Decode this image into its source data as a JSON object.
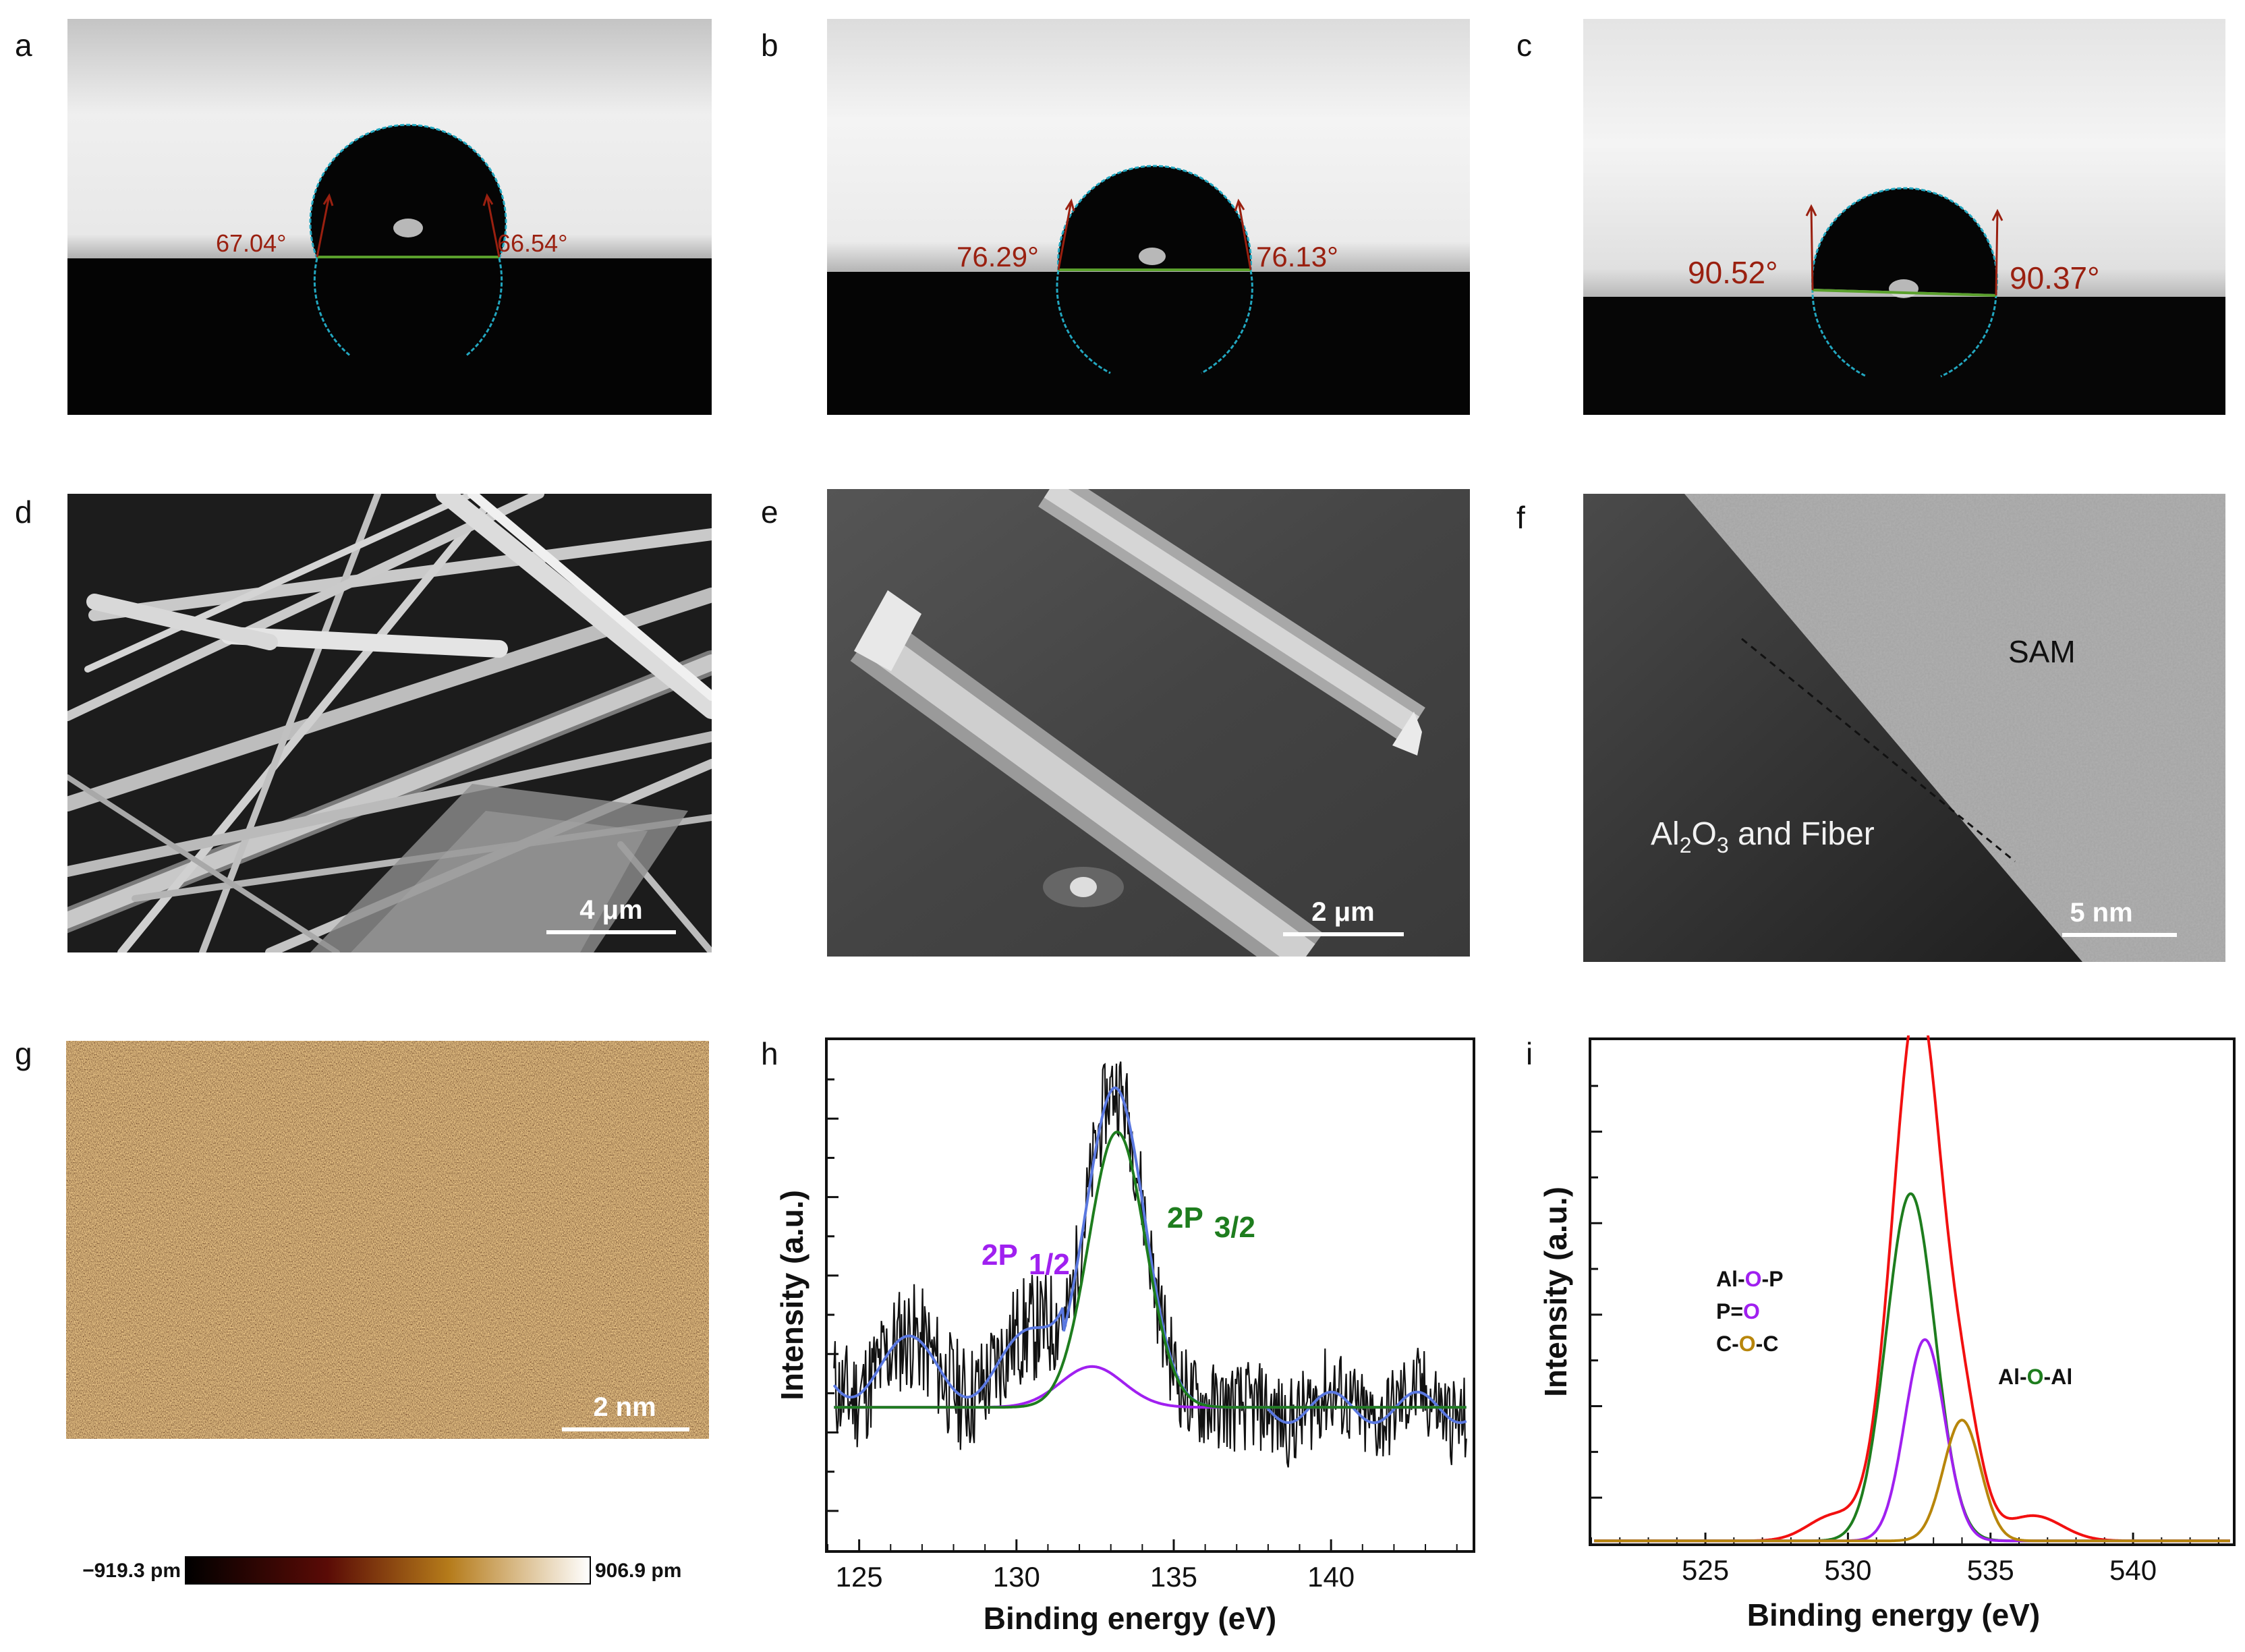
{
  "panels": {
    "a": {
      "label": "a",
      "left_angle": "67.04°",
      "right_angle": "66.54°"
    },
    "b": {
      "label": "b",
      "left_angle": "76.29°",
      "right_angle": "76.13°"
    },
    "c": {
      "label": "c",
      "left_angle": "90.52°",
      "right_angle": "90.37°"
    },
    "d": {
      "label": "d",
      "scale": "4 μm"
    },
    "e": {
      "label": "e",
      "scale": "2 μm"
    },
    "f": {
      "label": "f",
      "scale": "5 nm",
      "region_top": "SAM",
      "region_bottom_pre": "Al",
      "sub1": "2",
      "region_bottom_mid": "O",
      "sub2": "3",
      "region_bottom_post": " and Fiber"
    },
    "g": {
      "label": "g",
      "scale": "2 nm",
      "cbar_min": "−919.3 pm",
      "cbar_max": "906.9 pm"
    },
    "h": {
      "label": "h",
      "peak1": "2P",
      "peak1_sub": "1/2",
      "peak2": "2P",
      "peak2_sub": "3/2"
    },
    "i": {
      "label": "i",
      "ann1_a": "Al-",
      "ann1_o": "O",
      "ann1_b": "-P",
      "ann2_a": "P=",
      "ann2_o": "O",
      "ann3_a": "C-",
      "ann3_o": "O",
      "ann3_b": "-C",
      "ann4_a": "Al-",
      "ann4_o": "O",
      "ann4_b": "-Al"
    }
  },
  "colors": {
    "angle": "#9a2010",
    "baseline": "#5aa02c",
    "drop": "#22a7c0",
    "purple": "#a020f0",
    "green": "#1e7d1e",
    "blue": "#5a78e0",
    "red": "#f21010",
    "gold": "#b8860b"
  },
  "chart_data": [
    {
      "panel": "h",
      "type": "line",
      "xlabel": "Binding energy (eV)",
      "ylabel": "Intensity (a.u.)",
      "xlim": [
        124,
        144.5
      ],
      "xticks": [
        125,
        130,
        135,
        140
      ],
      "yticks_labels": false,
      "series": [
        {
          "name": "2P 1/2",
          "color": "#a020f0",
          "center": 132.4,
          "height": 0.36,
          "sigma": 1.0,
          "baseline": 0.28
        },
        {
          "name": "2P 3/2",
          "color": "#1e7d1e",
          "center": 133.2,
          "height": 0.82,
          "sigma": 0.9,
          "baseline": 0.28
        }
      ]
    },
    {
      "panel": "i",
      "type": "line",
      "xlabel": "Binding energy (eV)",
      "ylabel": "Intensity (a.u.)",
      "xlim": [
        521,
        543.5
      ],
      "xticks": [
        525,
        530,
        535,
        540
      ],
      "yticks_labels": false,
      "series": [
        {
          "name": "Al-O-Al",
          "color": "#1e7d1e",
          "center": 532.2,
          "height": 0.69,
          "sigma": 0.85
        },
        {
          "name": "Al-O-P",
          "color": "#a020f0",
          "center": 532.7,
          "height": 0.4,
          "sigma": 0.7
        },
        {
          "name": "C-O-C",
          "color": "#b8860b",
          "center": 534.0,
          "height": 0.24,
          "sigma": 0.65
        },
        {
          "name": "envelope",
          "color": "#f21010"
        }
      ]
    }
  ]
}
